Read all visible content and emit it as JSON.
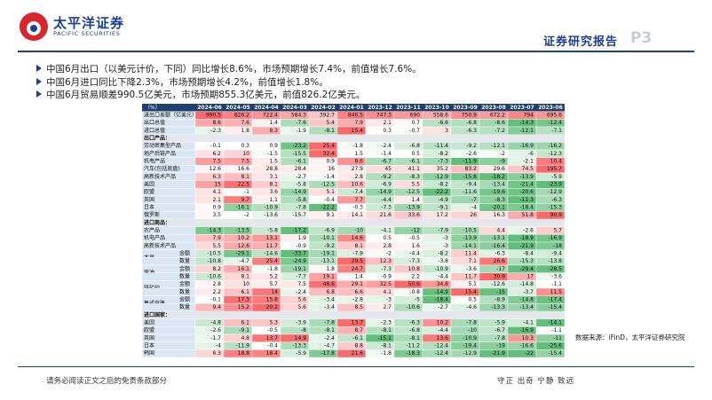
{
  "header": {
    "brand": "太平洋证券",
    "brand_en": "PACIFIC SECURITIES",
    "report": "证券研究报告",
    "page": "P3"
  },
  "bullets": [
    "中国6月出口（以美元计价，下同）同比增长8.6%，市场预期增长7.4%，前值增长7.6%。",
    "中国6月进口同比下降2.3%，市场预期增长4.2%，前值增长1.8%。",
    "中国6月贸易顺差990.5亿美元，市场预期855.3亿美元，前值826.2亿美元。"
  ],
  "table": {
    "columns": [
      "（%）",
      "2024-06",
      "2024-05",
      "2024-04",
      "2024-03",
      "2024-02",
      "2024-01",
      "2023-12",
      "2023-11",
      "2023-10",
      "2023-09",
      "2023-08",
      "2023-07",
      "2023-06"
    ],
    "rows": [
      {
        "label": "进出口差额（亿美元）",
        "values": [
          990.5,
          826.2,
          722.4,
          584.3,
          392.7,
          846.5,
          747.3,
          690.0,
          558.6,
          750.9,
          672.2,
          794.0,
          695.6
        ]
      },
      {
        "label": "出口总值",
        "values": [
          8.6,
          7.6,
          1.4,
          -7.6,
          5.4,
          7.9,
          2.1,
          0.7,
          -6.6,
          -6.8,
          -8.6,
          -14.3,
          -12.4
        ]
      },
      {
        "label": "进口总值",
        "values": [
          -2.3,
          1.8,
          8.3,
          -1.9,
          -8.1,
          15.4,
          0.3,
          -0.7,
          3.0,
          -6.3,
          -7.2,
          -12.1,
          -7.1
        ]
      },
      {
        "label": "出口产品："
      },
      {
        "label": "劳动密集型产品",
        "values": [
          -0.1,
          0.3,
          0.9,
          -23.2,
          25.4,
          -1.8,
          -2.4,
          -6.8,
          -11.4,
          -9.2,
          -12.1,
          -16.9,
          -16.2
        ]
      },
      {
        "label": "地产后链产品",
        "values": [
          6.2,
          10.0,
          -1.5,
          -15.5,
          32.4,
          1.5,
          -1.4,
          0.5,
          -8.2,
          -2.6,
          -2.0,
          -6.0,
          -12.3
        ]
      },
      {
        "label": "机电产品",
        "values": [
          7.5,
          7.5,
          1.5,
          -6.1,
          0.9,
          8.6,
          -6.7,
          -6.1,
          -7.3,
          -11.9,
          -9.0,
          -2.1,
          10.4
        ]
      },
      {
        "label": "汽车(包括底盘)",
        "values": [
          12.6,
          16.6,
          28.8,
          28.4,
          16.0,
          27.9,
          45.0,
          41.1,
          35.2,
          83.2,
          29.6,
          74.5,
          195.7
        ]
      },
      {
        "label": "高新技术产品",
        "values": [
          6.3,
          8.1,
          3.1,
          -2.7,
          -1.4,
          2.8,
          -9.2,
          -8.3,
          -12.9,
          -15.8,
          -18.2,
          -13.9,
          -5.9
        ]
      },
      {
        "label": "美国",
        "values": [
          15.0,
          22.5,
          8.1,
          -5.8,
          -12.5,
          10.6,
          -6.9,
          5.5,
          -8.2,
          -9.4,
          -13.4,
          -21.4,
          -23.9
        ]
      },
      {
        "label": "欧盟",
        "values": [
          4.1,
          -1.0,
          3.6,
          -14.9,
          5.1,
          -7.4,
          -14.9,
          -12.5,
          -22.2,
          -11.6,
          -19.6,
          -20.6,
          -12.9
        ]
      },
      {
        "label": "英国",
        "values": [
          2.1,
          9.7,
          1.1,
          -5.8,
          -0.4,
          7.7,
          -4.4,
          1.4,
          -4.9,
          -7.0,
          -8.3,
          -11.3,
          -6.3
        ]
      },
      {
        "label": "日本",
        "values": [
          0.9,
          -16.1,
          -10.9,
          -7.8,
          -22.2,
          -0.3,
          -7.3,
          -13.9,
          -9.1,
          -4.0,
          -20.1,
          -18.4,
          -15.3
        ]
      },
      {
        "label": "俄罗斯",
        "values": [
          3.5,
          -2.0,
          -13.6,
          -15.7,
          9.1,
          14.1,
          21.6,
          33.6,
          17.2,
          26.0,
          16.3,
          51.8,
          90.9
        ]
      },
      {
        "label": "进口商品："
      },
      {
        "label": "农产品",
        "values": [
          -14.3,
          -13.5,
          -5.8,
          -17.2,
          -6.9,
          -10.0,
          -4.1,
          -12.0,
          -7.9,
          -10.5,
          4.4,
          -2.6,
          5.7
        ]
      },
      {
        "label": "机电产品",
        "values": [
          7.9,
          10.2,
          13.1,
          1.9,
          -10.1,
          14.6,
          0.5,
          -0.5,
          -3.0,
          -13.9,
          -13.1,
          -18.9,
          -16.9
        ]
      },
      {
        "label": "高新技术产品",
        "values": [
          5.5,
          12.6,
          11.7,
          -0.9,
          -9.2,
          8.1,
          2.8,
          1.6,
          -3.0,
          -14.1,
          -16.4,
          -21.9,
          -18.0
        ]
      },
      {
        "label": "大豆",
        "sub": "金额",
        "values": [
          -10.5,
          -29.1,
          -14.6,
          -33.7,
          -19.1,
          -7.9,
          -2.0,
          -4.4,
          -8.2,
          11.4,
          -6.3,
          -8.4,
          -9.4
        ]
      },
      {
        "sub": "数量",
        "values": [
          -10.8,
          -4.7,
          25.4,
          -24.9,
          -13.1,
          29.5,
          12.3,
          -7.3,
          -3.8,
          7.1,
          26.6,
          -15.3,
          -13.8
        ]
      },
      {
        "label": "原油",
        "sub": "金额",
        "values": [
          8.2,
          16.1,
          -1.8,
          -19.1,
          1.8,
          24.7,
          -7.3,
          10.8,
          -10.9,
          -3.6,
          -17.0,
          -29.4,
          -28.5
        ]
      },
      {
        "sub": "数量",
        "values": [
          -10.6,
          8.1,
          5.2,
          -7.7,
          19.1,
          1.4,
          -0.9,
          2.2,
          -4.4,
          11.7,
          30.9,
          17.0,
          -3.6
        ]
      },
      {
        "label": "铁矿砂",
        "sub": "金额",
        "values": [
          2.8,
          10.0,
          5.7,
          7.5,
          48.6,
          29.1,
          32.5,
          50.6,
          34.8,
          5.1,
          -12.6,
          -14.8,
          -1.1
        ]
      },
      {
        "sub": "数量",
        "values": [
          2.2,
          6.1,
          14.0,
          -2.4,
          6.8,
          6.6,
          4.1,
          -0.8,
          -14.9,
          15.4,
          -15.0,
          -3.7,
          11.5
        ]
      },
      {
        "label": "集成电路",
        "sub": "金额",
        "values": [
          -0.1,
          17.3,
          15.8,
          5.6,
          -3.4,
          -2.8,
          -3.0,
          -5.0,
          -18.4,
          0.5,
          -8.9,
          -14.8,
          -17.4
        ]
      },
      {
        "sub": "数量",
        "values": [
          9.4,
          15.2,
          20.2,
          5.6,
          -3.4,
          8.5,
          2.7,
          -10.6,
          -2.7,
          -4.6,
          -13.3,
          -13.4,
          -15.4
        ]
      },
      {
        "label": "进口国家："
      },
      {
        "label": "美国",
        "values": [
          -4.8,
          6.1,
          5.3,
          -3.9,
          -7.8,
          13.7,
          -2.3,
          -6.3,
          10.2,
          -7.8,
          -5.9,
          -4.1,
          -14.1
        ]
      },
      {
        "label": "欧盟",
        "values": [
          -2.6,
          -9.1,
          -0.5,
          -8.0,
          -8.1,
          8.7,
          -8.1,
          -6.8,
          -4.4,
          -10.0,
          -6.7,
          -16.9,
          -1.1
        ]
      },
      {
        "label": "英国",
        "values": [
          -1.7,
          4.8,
          13.7,
          14.9,
          -2.4,
          -6.1,
          -15.1,
          -8.1,
          13.6,
          -10.9,
          -7.8,
          10.3,
          -11.0
        ]
      },
      {
        "label": "日本",
        "values": [
          -4.0,
          -11.9,
          -0.4,
          -13.3,
          -4.7,
          8.8,
          -8.1,
          -11.2,
          -12.4,
          -19.4,
          -19.0,
          -16.6,
          -25.6
        ]
      },
      {
        "label": "韩国",
        "values": [
          6.3,
          18.8,
          18.4,
          -5.9,
          -17.8,
          21.6,
          -1.8,
          -18.3,
          -12.4,
          -12.9,
          -21.9,
          -22.0,
          -15.4
        ]
      }
    ]
  },
  "source": "数据来源：iFinD，太平洋证券研究院",
  "footer": {
    "left": "请务必阅读正文之后的免责条款部分",
    "right": "守正 出奇 宁静 致远"
  }
}
